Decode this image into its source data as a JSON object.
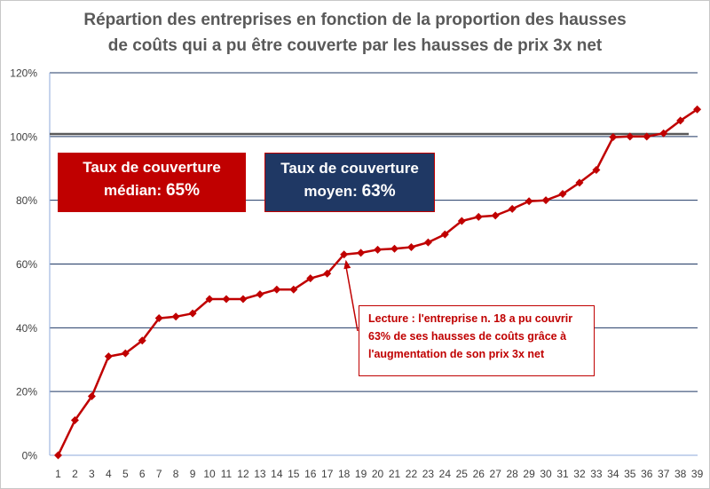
{
  "chart_data": {
    "type": "line",
    "title": "Répartion des entreprises en fonction de la proportion des hausses\nde coûts qui a pu être couverte par les hausses de prix 3x net",
    "title_lines": [
      "Répartion des entreprises en fonction de la proportion des hausses",
      "de coûts qui a pu être couverte par les hausses de prix 3x net"
    ],
    "xlabel": "",
    "ylabel": "",
    "categories": [
      "1",
      "2",
      "3",
      "4",
      "5",
      "6",
      "7",
      "8",
      "9",
      "10",
      "11",
      "12",
      "13",
      "14",
      "15",
      "16",
      "17",
      "18",
      "19",
      "20",
      "21",
      "22",
      "23",
      "24",
      "25",
      "26",
      "27",
      "28",
      "29",
      "30",
      "31",
      "32",
      "33",
      "34",
      "35",
      "36",
      "37",
      "38",
      "39"
    ],
    "series": [
      {
        "values": [
          0,
          11,
          18.5,
          31,
          32,
          36,
          43,
          43.5,
          44.5,
          49,
          49,
          49,
          50.5,
          52,
          52,
          55.5,
          57,
          63,
          63.5,
          64.5,
          64.8,
          65.3,
          66.8,
          69.3,
          73.5,
          74.8,
          75.2,
          77.3,
          79.7,
          80,
          82,
          85.5,
          89.5,
          99.8,
          100,
          100,
          101,
          105,
          108.5
        ]
      }
    ],
    "ylim": [
      0,
      120
    ],
    "yticks": [
      0,
      20,
      40,
      60,
      80,
      100,
      120
    ],
    "ytick_labels": [
      "0%",
      "20%",
      "40%",
      "60%",
      "80%",
      "100%",
      "120%"
    ],
    "reference_line": 100.8,
    "grid": true,
    "colors": {
      "series": "#c00000",
      "grid": "#1f3864",
      "reference": "#595959",
      "axis": "#8eaadb"
    }
  },
  "boxes": {
    "median": {
      "line1": "Taux de couverture",
      "label": "médian: ",
      "value": "65%",
      "color": "#c00000"
    },
    "mean": {
      "line1": "Taux de couverture",
      "label": "moyen: ",
      "value": "63%",
      "color": "#1f3864"
    }
  },
  "annotation": {
    "lines": [
      "Lecture : l'entreprise n. 18 a pu couvrir",
      "63% de ses hausses de coûts grâce à",
      "l'augmentation de son prix 3x net"
    ],
    "target_index": 17
  }
}
